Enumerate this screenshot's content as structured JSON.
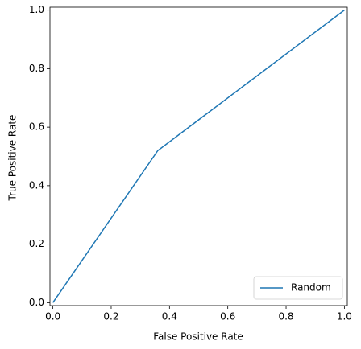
{
  "chart_data": {
    "type": "line",
    "xlabel": "False Positive Rate",
    "ylabel": "True Positive Rate",
    "x": [
      0,
      0.36,
      1
    ],
    "series": [
      {
        "name": "Random",
        "color": "#1f77b4",
        "values": [
          0,
          0.52,
          1
        ]
      }
    ],
    "xlim": [
      -0.01,
      1.01
    ],
    "ylim": [
      -0.01,
      1.01
    ],
    "xticks": [
      {
        "value": 0,
        "label": "0.0"
      },
      0.2,
      0.4,
      0.6,
      0.8,
      {
        "value": 1,
        "label": "1.0"
      }
    ],
    "yticks": [
      {
        "value": 0,
        "label": "0.0"
      },
      0.2,
      0.4,
      0.6,
      0.8,
      {
        "value": 1,
        "label": "1.0"
      }
    ],
    "grid": false,
    "legend": "lower right"
  }
}
